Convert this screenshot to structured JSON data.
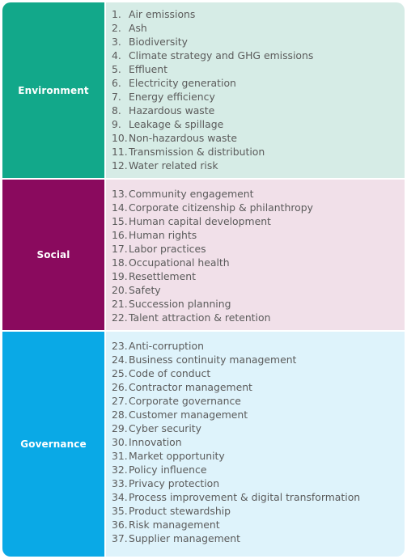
{
  "colors": {
    "environment_dark": "#12a88a",
    "environment_light": "#d6ece6",
    "social_dark": "#8a0a5e",
    "social_light": "#f1e0e9",
    "governance_dark": "#0aa9e6",
    "governance_light": "#def3fb",
    "item_text": "#5b5b5b"
  },
  "sections": [
    {
      "category": "Environment",
      "items": [
        {
          "num": "1.",
          "label": "Air emissions"
        },
        {
          "num": "2.",
          "label": "Ash"
        },
        {
          "num": "3.",
          "label": "Biodiversity"
        },
        {
          "num": "4.",
          "label": "Climate strategy and GHG emissions"
        },
        {
          "num": "5.",
          "label": "Effluent"
        },
        {
          "num": "6.",
          "label": "Electricity generation"
        },
        {
          "num": "7.",
          "label": "Energy efficiency"
        },
        {
          "num": "8.",
          "label": "Hazardous waste"
        },
        {
          "num": "9.",
          "label": "Leakage & spillage"
        },
        {
          "num": "10.",
          "label": "Non-hazardous waste"
        },
        {
          "num": "11.",
          "label": "Transmission & distribution"
        },
        {
          "num": "12.",
          "label": "Water related risk"
        }
      ]
    },
    {
      "category": "Social",
      "items": [
        {
          "num": "13.",
          "label": "Community engagement"
        },
        {
          "num": "14.",
          "label": "Corporate citizenship & philanthropy"
        },
        {
          "num": "15.",
          "label": "Human capital development"
        },
        {
          "num": "16.",
          "label": "Human rights"
        },
        {
          "num": "17.",
          "label": "Labor practices"
        },
        {
          "num": "18.",
          "label": "Occupational health"
        },
        {
          "num": "19.",
          "label": "Resettlement"
        },
        {
          "num": "20.",
          "label": "Safety"
        },
        {
          "num": "21.",
          "label": "Succession planning"
        },
        {
          "num": "22.",
          "label": "Talent attraction & retention"
        }
      ]
    },
    {
      "category": "Governance",
      "items": [
        {
          "num": "23.",
          "label": "Anti-corruption"
        },
        {
          "num": "24.",
          "label": "Business continuity management"
        },
        {
          "num": "25.",
          "label": "Code of conduct"
        },
        {
          "num": "26.",
          "label": "Contractor management"
        },
        {
          "num": "27.",
          "label": "Corporate governance"
        },
        {
          "num": "28.",
          "label": "Customer management"
        },
        {
          "num": "29.",
          "label": "Cyber security"
        },
        {
          "num": "30.",
          "label": "Innovation"
        },
        {
          "num": "31.",
          "label": "Market opportunity"
        },
        {
          "num": "32.",
          "label": "Policy influence"
        },
        {
          "num": "33.",
          "label": "Privacy protection"
        },
        {
          "num": "34.",
          "label": "Process improvement & digital transformation"
        },
        {
          "num": "35.",
          "label": "Product stewardship"
        },
        {
          "num": "36.",
          "label": "Risk management"
        },
        {
          "num": "37.",
          "label": "Supplier management"
        }
      ]
    }
  ]
}
